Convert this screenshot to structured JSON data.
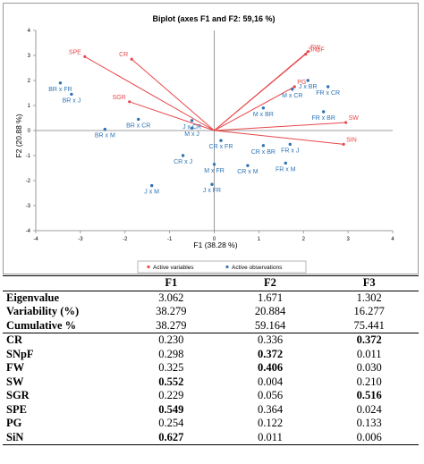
{
  "chart_data": {
    "type": "scatter",
    "title": "Biplot (axes F1 and F2: 59,16 %)",
    "xlabel": "F1 (38.28 %)",
    "ylabel": "F2 (20.88 %)",
    "xlim": [
      -4,
      4
    ],
    "ylim": [
      -4,
      4
    ],
    "xticks": [
      "-4",
      "-3",
      "-2",
      "-1",
      "0",
      "1",
      "2",
      "3",
      "4"
    ],
    "yticks": [
      "-4",
      "-3",
      "-2",
      "-1",
      "0",
      "1",
      "2",
      "3",
      "4"
    ],
    "grid": false,
    "legend_position": "bottom",
    "legend": [
      "Active variables",
      "Active observations"
    ],
    "colors": {
      "variables": "#e8474a",
      "observations": "#2e74b5",
      "axes": "#7f7f7f"
    },
    "variables": [
      {
        "label": "FW",
        "x": 2.1,
        "y": 3.15
      },
      {
        "label": "SNpF",
        "x": 2.05,
        "y": 3.05
      },
      {
        "label": "PG",
        "x": 1.8,
        "y": 1.75
      },
      {
        "label": "SW",
        "x": 2.95,
        "y": 0.32
      },
      {
        "label": "SIN",
        "x": 2.9,
        "y": -0.55
      },
      {
        "label": "SPE",
        "x": -2.9,
        "y": 2.95
      },
      {
        "label": "CR",
        "x": -1.85,
        "y": 2.85
      },
      {
        "label": "SGR",
        "x": -1.9,
        "y": 1.15
      }
    ],
    "observations": [
      {
        "label": "BR x FR",
        "x": -3.45,
        "y": 1.9
      },
      {
        "label": "BR x J",
        "x": -3.2,
        "y": 1.45
      },
      {
        "label": "BR x M",
        "x": -2.45,
        "y": 0.05
      },
      {
        "label": "BR x CR",
        "x": -1.7,
        "y": 0.45
      },
      {
        "label": "J x CR",
        "x": -0.5,
        "y": 0.4
      },
      {
        "label": "M x J",
        "x": -0.5,
        "y": 0.1
      },
      {
        "label": "CR x J",
        "x": -0.7,
        "y": -1.0
      },
      {
        "label": "J x M",
        "x": -1.4,
        "y": -2.2
      },
      {
        "label": "J x FR",
        "x": -0.05,
        "y": -2.15
      },
      {
        "label": "M x FR",
        "x": 0.0,
        "y": -1.35
      },
      {
        "label": "CR x FR",
        "x": 0.15,
        "y": -0.4
      },
      {
        "label": "CR x M",
        "x": 0.75,
        "y": -1.4
      },
      {
        "label": "CR x BR",
        "x": 1.1,
        "y": -0.6
      },
      {
        "label": "FR x J",
        "x": 1.7,
        "y": -0.55
      },
      {
        "label": "FR x M",
        "x": 1.6,
        "y": -1.3
      },
      {
        "label": "M x BR",
        "x": 1.1,
        "y": 0.9
      },
      {
        "label": "M x CR",
        "x": 1.75,
        "y": 1.65
      },
      {
        "label": "J x BR",
        "x": 2.1,
        "y": 2.0
      },
      {
        "label": "FR x CR",
        "x": 2.55,
        "y": 1.75
      },
      {
        "label": "FR x BR",
        "x": 2.45,
        "y": 0.75
      }
    ]
  },
  "table": {
    "headers": [
      "",
      "F1",
      "F2",
      "F3"
    ],
    "summary_rows": [
      {
        "label": "Eigenvalue",
        "values": [
          "3.062",
          "1.671",
          "1.302"
        ],
        "bold": [
          false,
          false,
          false
        ]
      },
      {
        "label": "Variability (%)",
        "values": [
          "38.279",
          "20.884",
          "16.277"
        ],
        "bold": [
          false,
          false,
          false
        ]
      },
      {
        "label": "Cumulative %",
        "values": [
          "38.279",
          "59.164",
          "75.441"
        ],
        "bold": [
          false,
          false,
          false
        ]
      }
    ],
    "variable_rows": [
      {
        "label": "CR",
        "values": [
          "0.230",
          "0.336",
          "0.372"
        ],
        "bold": [
          false,
          false,
          true
        ]
      },
      {
        "label": "SNpF",
        "values": [
          "0.298",
          "0.372",
          "0.011"
        ],
        "bold": [
          false,
          true,
          false
        ]
      },
      {
        "label": "FW",
        "values": [
          "0.325",
          "0.406",
          "0.030"
        ],
        "bold": [
          false,
          true,
          false
        ]
      },
      {
        "label": "SW",
        "values": [
          "0.552",
          "0.004",
          "0.210"
        ],
        "bold": [
          true,
          false,
          false
        ]
      },
      {
        "label": "SGR",
        "values": [
          "0.229",
          "0.056",
          "0.516"
        ],
        "bold": [
          false,
          false,
          true
        ]
      },
      {
        "label": "SPE",
        "values": [
          "0.549",
          "0.364",
          "0.024"
        ],
        "bold": [
          true,
          false,
          false
        ]
      },
      {
        "label": "PG",
        "values": [
          "0.254",
          "0.122",
          "0.133"
        ],
        "bold": [
          false,
          false,
          false
        ]
      },
      {
        "label": "SiN",
        "values": [
          "0.627",
          "0.011",
          "0.006"
        ],
        "bold": [
          true,
          false,
          false
        ]
      }
    ]
  }
}
